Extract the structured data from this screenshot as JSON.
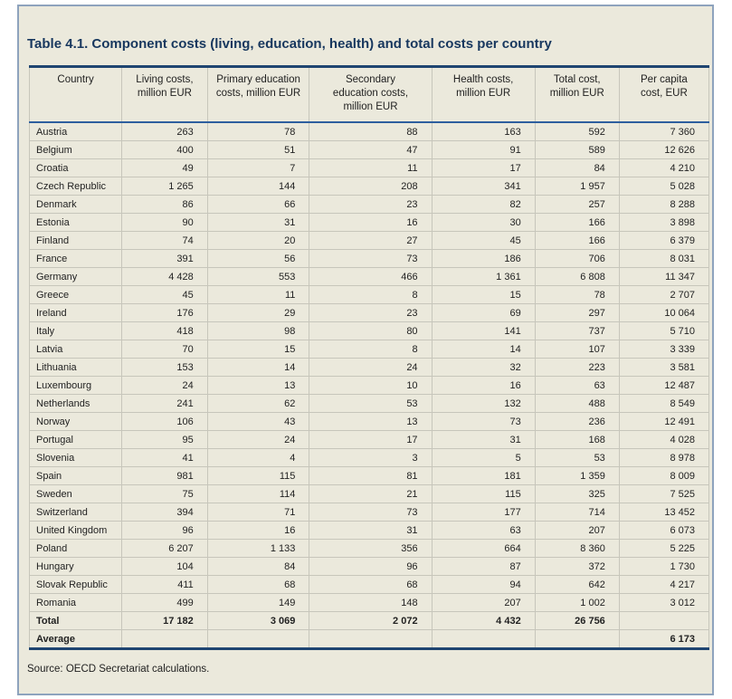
{
  "title": "Table 4.1. Component costs (living, education, health) and total costs per country",
  "source_note": "Source: OECD Secretariat calculations.",
  "colors": {
    "panel_background": "#ebe9dc",
    "panel_border": "#8ea3bd",
    "rule_navy": "#1f4571",
    "header_underline": "#2e5f9e",
    "grid_line": "#c7c6bb",
    "title_text": "#17375e",
    "body_text": "#222222"
  },
  "table": {
    "columns": [
      "Country",
      "Living costs,\nmillion EUR",
      "Primary education\ncosts, million EUR",
      "Secondary\neducation costs,\nmillion EUR",
      "Health costs,\nmillion EUR",
      "Total cost,\nmillion EUR",
      "Per capita\ncost, EUR"
    ],
    "rows": [
      {
        "country": "Austria",
        "values": [
          "263",
          "78",
          "88",
          "163",
          "592",
          "7 360"
        ]
      },
      {
        "country": "Belgium",
        "values": [
          "400",
          "51",
          "47",
          "91",
          "589",
          "12 626"
        ]
      },
      {
        "country": "Croatia",
        "values": [
          "49",
          "7",
          "11",
          "17",
          "84",
          "4 210"
        ]
      },
      {
        "country": "Czech Republic",
        "values": [
          "1 265",
          "144",
          "208",
          "341",
          "1 957",
          "5 028"
        ]
      },
      {
        "country": "Denmark",
        "values": [
          "86",
          "66",
          "23",
          "82",
          "257",
          "8 288"
        ]
      },
      {
        "country": "Estonia",
        "values": [
          "90",
          "31",
          "16",
          "30",
          "166",
          "3 898"
        ]
      },
      {
        "country": "Finland",
        "values": [
          "74",
          "20",
          "27",
          "45",
          "166",
          "6 379"
        ]
      },
      {
        "country": "France",
        "values": [
          "391",
          "56",
          "73",
          "186",
          "706",
          "8 031"
        ]
      },
      {
        "country": "Germany",
        "values": [
          "4 428",
          "553",
          "466",
          "1 361",
          "6 808",
          "11 347"
        ]
      },
      {
        "country": "Greece",
        "values": [
          "45",
          "11",
          "8",
          "15",
          "78",
          "2 707"
        ]
      },
      {
        "country": "Ireland",
        "values": [
          "176",
          "29",
          "23",
          "69",
          "297",
          "10 064"
        ]
      },
      {
        "country": "Italy",
        "values": [
          "418",
          "98",
          "80",
          "141",
          "737",
          "5 710"
        ]
      },
      {
        "country": "Latvia",
        "values": [
          "70",
          "15",
          "8",
          "14",
          "107",
          "3 339"
        ]
      },
      {
        "country": "Lithuania",
        "values": [
          "153",
          "14",
          "24",
          "32",
          "223",
          "3 581"
        ]
      },
      {
        "country": "Luxembourg",
        "values": [
          "24",
          "13",
          "10",
          "16",
          "63",
          "12 487"
        ]
      },
      {
        "country": "Netherlands",
        "values": [
          "241",
          "62",
          "53",
          "132",
          "488",
          "8 549"
        ]
      },
      {
        "country": "Norway",
        "values": [
          "106",
          "43",
          "13",
          "73",
          "236",
          "12 491"
        ]
      },
      {
        "country": "Portugal",
        "values": [
          "95",
          "24",
          "17",
          "31",
          "168",
          "4 028"
        ]
      },
      {
        "country": "Slovenia",
        "values": [
          "41",
          "4",
          "3",
          "5",
          "53",
          "8 978"
        ]
      },
      {
        "country": "Spain",
        "values": [
          "981",
          "115",
          "81",
          "181",
          "1 359",
          "8 009"
        ]
      },
      {
        "country": "Sweden",
        "values": [
          "75",
          "114",
          "21",
          "115",
          "325",
          "7 525"
        ]
      },
      {
        "country": "Switzerland",
        "values": [
          "394",
          "71",
          "73",
          "177",
          "714",
          "13 452"
        ]
      },
      {
        "country": "United Kingdom",
        "values": [
          "96",
          "16",
          "31",
          "63",
          "207",
          "6 073"
        ]
      },
      {
        "country": "Poland",
        "values": [
          "6 207",
          "1 133",
          "356",
          "664",
          "8 360",
          "5 225"
        ]
      },
      {
        "country": "Hungary",
        "values": [
          "104",
          "84",
          "96",
          "87",
          "372",
          "1 730"
        ]
      },
      {
        "country": "Slovak Republic",
        "values": [
          "411",
          "68",
          "68",
          "94",
          "642",
          "4 217"
        ]
      },
      {
        "country": "Romania",
        "values": [
          "499",
          "149",
          "148",
          "207",
          "1 002",
          "3 012"
        ]
      }
    ],
    "total_row": {
      "label": "Total",
      "values": [
        "17 182",
        "3 069",
        "2 072",
        "4 432",
        "26 756",
        ""
      ]
    },
    "average_row": {
      "label": "Average",
      "values": [
        "",
        "",
        "",
        "",
        "",
        "6 173"
      ]
    }
  }
}
